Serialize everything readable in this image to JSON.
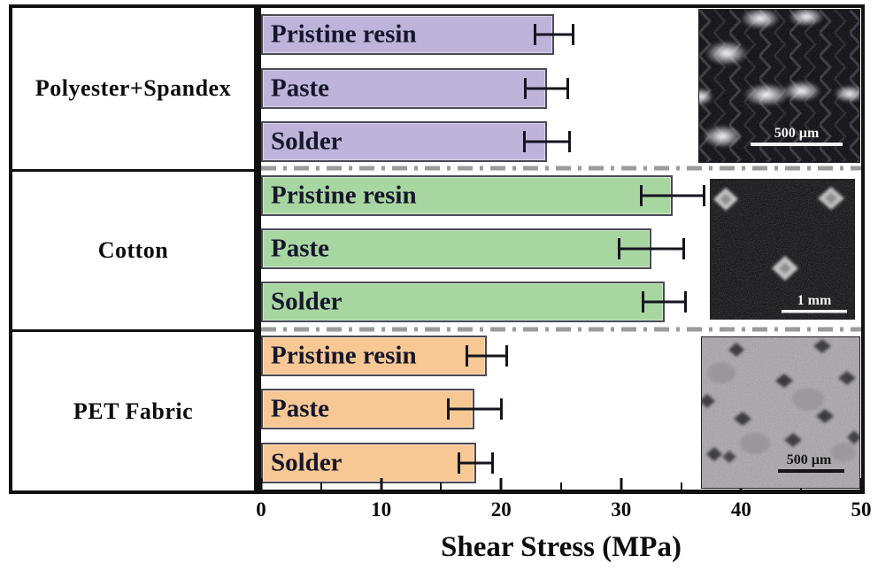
{
  "figure": {
    "axis": {
      "title": "Shear Stress (MPa)",
      "min": 0,
      "max": 50,
      "major_ticks": [
        0,
        10,
        20,
        30,
        40,
        50
      ],
      "minor_ticks": [
        5,
        15,
        25,
        35,
        45
      ]
    },
    "divider_color": "#9b9b9b",
    "error_bar_color": "#15151f"
  },
  "chart_data": {
    "type": "bar",
    "orientation": "horizontal",
    "xlabel": "Shear Stress (MPa)",
    "xlim": [
      0,
      50
    ],
    "grid": false,
    "legend": "none",
    "groups": [
      {
        "category": "Polyester+Spandex",
        "color": "#beb4da",
        "bars": [
          {
            "label": "Pristine resin",
            "value": 24.4,
            "error": 1.7
          },
          {
            "label": "Paste",
            "value": 23.8,
            "error": 1.9
          },
          {
            "label": "Solder",
            "value": 23.8,
            "error": 2.0
          }
        ],
        "inset": {
          "description": "dark optical micrograph of knit fibers with bright highlights",
          "scale_label": "500 µm"
        }
      },
      {
        "category": "Cotton",
        "color": "#a8d6a0",
        "bars": [
          {
            "label": "Pristine resin",
            "value": 34.3,
            "error": 2.7
          },
          {
            "label": "Paste",
            "value": 32.5,
            "error": 2.8
          },
          {
            "label": "Solder",
            "value": 33.6,
            "error": 1.9
          }
        ],
        "inset": {
          "description": "dark SEM micrograph of woven cotton with bright solder diamonds",
          "scale_label": "1 mm"
        }
      },
      {
        "category": "PET Fabric",
        "color": "#f7c894",
        "bars": [
          {
            "label": "Pristine resin",
            "value": 18.8,
            "error": 1.8
          },
          {
            "label": "Paste",
            "value": 17.8,
            "error": 2.3
          },
          {
            "label": "Solder",
            "value": 17.9,
            "error": 1.5
          }
        ],
        "inset": {
          "description": "light micrograph of PET fabric with dark diamond pads",
          "scale_label": "500 µm"
        }
      }
    ]
  }
}
